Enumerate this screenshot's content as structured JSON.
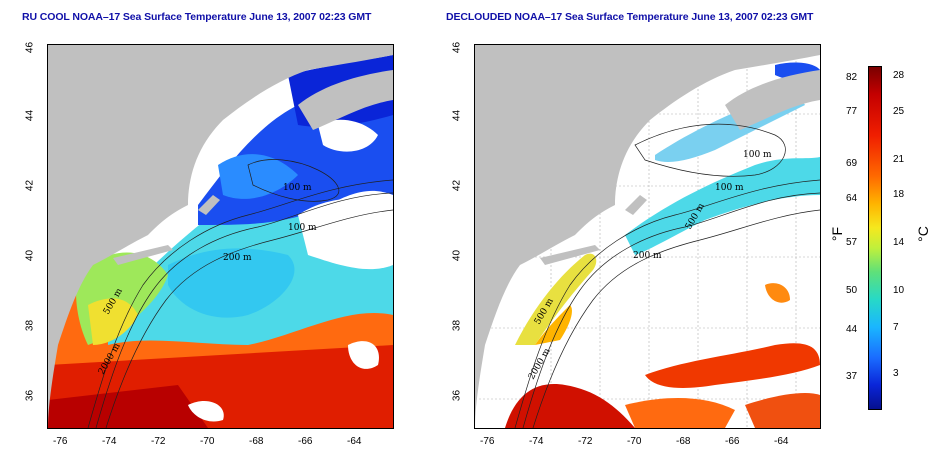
{
  "left_panel": {
    "title": "RU COOL NOAA–17 Sea Surface Temperature June 13, 2007 02:23 GMT"
  },
  "right_panel": {
    "title": "DECLOUDED NOAA–17 Sea Surface Temperature June 13, 2007 02:23 GMT"
  },
  "axes": {
    "x_ticks": [
      "-76",
      "-74",
      "-72",
      "-70",
      "-68",
      "-66",
      "-64"
    ],
    "y_ticks": [
      "46",
      "44",
      "42",
      "40",
      "38",
      "36"
    ]
  },
  "contours": {
    "left": [
      "100 m",
      "100 m",
      "200 m",
      "500 m",
      "2000 m"
    ],
    "right": [
      "100 m",
      "100 m",
      "500 m",
      "200 m",
      "500 m",
      "2000 m"
    ]
  },
  "colorbar": {
    "fahrenheit_ticks": [
      "82",
      "77",
      "69",
      "64",
      "57",
      "50",
      "44",
      "37"
    ],
    "celsius_ticks": [
      "28",
      "25",
      "21",
      "18",
      "14",
      "10",
      "7",
      "3"
    ],
    "unit_f": "°F",
    "unit_c": "°C"
  },
  "colors": {
    "land": "#c0c0c0",
    "cloud": "#ffffff",
    "title": "#1010a8"
  }
}
